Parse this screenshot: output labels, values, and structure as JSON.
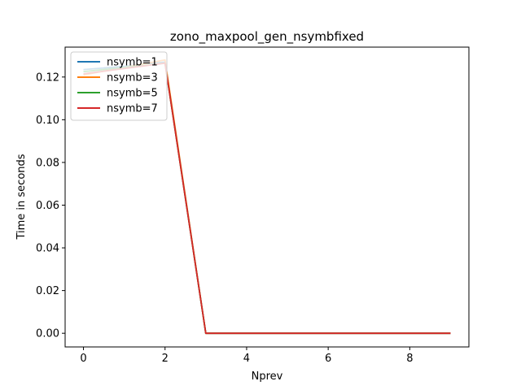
{
  "chart_data": {
    "type": "line",
    "title": "zono_maxpool_gen_nsymbfixed",
    "xlabel": "Nprev",
    "ylabel": "Time in seconds",
    "x": [
      0,
      1,
      2,
      3,
      4,
      5,
      6,
      7,
      8,
      9
    ],
    "xlim": [
      -0.45,
      9.45
    ],
    "ylim": [
      -0.0064,
      0.134
    ],
    "xticks": [
      0,
      2,
      4,
      6,
      8
    ],
    "yticks": [
      0.0,
      0.02,
      0.04,
      0.06,
      0.08,
      0.1,
      0.12
    ],
    "ytick_labels": [
      "0.00",
      "0.02",
      "0.04",
      "0.06",
      "0.08",
      "0.10",
      "0.12"
    ],
    "grid": false,
    "legend_position": "top-left",
    "series": [
      {
        "name": "nsymb=1",
        "color": "#1f77b4",
        "values": [
          0.1235,
          0.125,
          0.127,
          0.0,
          0.0,
          0.0,
          0.0,
          0.0,
          0.0,
          0.0
        ]
      },
      {
        "name": "nsymb=3",
        "color": "#ff7f0e",
        "values": [
          0.121,
          0.1245,
          0.128,
          0.0,
          0.0,
          0.0,
          0.0,
          0.0,
          0.0,
          0.0
        ]
      },
      {
        "name": "nsymb=5",
        "color": "#2ca02c",
        "values": [
          0.1225,
          0.1245,
          0.1265,
          0.0,
          0.0,
          0.0,
          0.0,
          0.0,
          0.0,
          0.0
        ]
      },
      {
        "name": "nsymb=7",
        "color": "#d62728",
        "values": [
          0.1215,
          0.124,
          0.1265,
          0.0,
          0.0,
          0.0,
          0.0,
          0.0,
          0.0,
          0.0
        ]
      }
    ]
  }
}
